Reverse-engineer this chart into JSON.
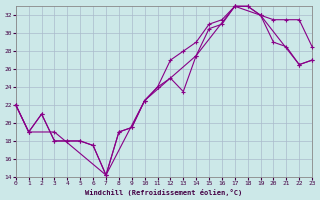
{
  "bg_color": "#cce8e8",
  "line_color": "#880088",
  "grid_color": "#aabbcc",
  "xlim": [
    0,
    23
  ],
  "ylim": [
    14,
    33
  ],
  "xticks": [
    0,
    1,
    2,
    3,
    4,
    5,
    6,
    7,
    8,
    9,
    10,
    11,
    12,
    13,
    14,
    15,
    16,
    17,
    18,
    19,
    20,
    21,
    22,
    23
  ],
  "yticks": [
    14,
    16,
    18,
    20,
    22,
    24,
    26,
    28,
    30,
    32
  ],
  "xlabel": "Windchill (Refroidissement éolien,°C)",
  "curve1_x": [
    0,
    1,
    2,
    3,
    4,
    5,
    6,
    7,
    8,
    9,
    10,
    11,
    12,
    13,
    14,
    15,
    16,
    17,
    18,
    19,
    20,
    21,
    22,
    23
  ],
  "curve1_y": [
    22,
    19,
    21,
    18,
    18,
    18,
    17.5,
    14.2,
    19,
    19.5,
    22.5,
    24.0,
    25.0,
    23.5,
    27.5,
    30.5,
    31.0,
    33.0,
    33.0,
    32.0,
    31.5,
    31.5,
    31.5,
    28.5
  ],
  "curve2_x": [
    0,
    1,
    2,
    3,
    4,
    5,
    6,
    7,
    8,
    9,
    10,
    11,
    12,
    13,
    14,
    15,
    16,
    17,
    18,
    19,
    20,
    21,
    22,
    23
  ],
  "curve2_y": [
    22,
    19,
    21,
    18,
    18,
    18,
    17.5,
    14.2,
    19,
    19.5,
    22.5,
    24.0,
    27.0,
    28.0,
    29.0,
    31.0,
    31.5,
    33.0,
    33.0,
    32.0,
    29.0,
    28.5,
    26.5,
    27.0
  ],
  "curve3_x": [
    0,
    1,
    3,
    7,
    10,
    14,
    17,
    19,
    22,
    23
  ],
  "curve3_y": [
    22,
    19,
    19,
    14.2,
    22.5,
    27.5,
    33.0,
    32.0,
    26.5,
    27.0
  ]
}
